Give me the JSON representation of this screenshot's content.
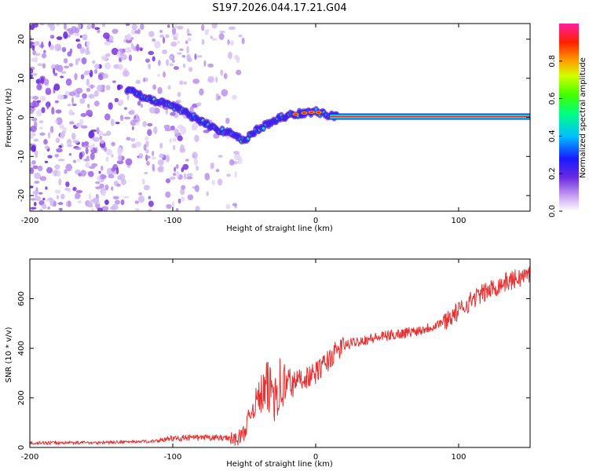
{
  "title": "S197.2026.044.17.21.G04",
  "chart_data": [
    {
      "type": "heatmap",
      "xlabel": "Height of straight line (km)",
      "ylabel": "Frequency (Hz)",
      "xlim": [
        -200,
        150
      ],
      "ylim": [
        -24,
        24
      ],
      "xticks": [
        "-200",
        "-100",
        "0",
        "100"
      ],
      "yticks": [
        "-20",
        "-10",
        "0",
        "10",
        "20"
      ],
      "colorbar": {
        "label": "Normalized spectral amplitude",
        "range": [
          0,
          1
        ],
        "ticks": [
          "0.0",
          "0.2",
          "0.4",
          "0.6",
          "0.8"
        ]
      },
      "ridge": {
        "x": [
          -130,
          -120,
          -110,
          -100,
          -90,
          -80,
          -70,
          -60,
          -55,
          -50,
          -45,
          -40,
          -30,
          -20,
          -10,
          0,
          5,
          10,
          15,
          150
        ],
        "freq": [
          7,
          5,
          4,
          3,
          1,
          -1,
          -3,
          -4,
          -5,
          -6,
          -4,
          -3,
          -1,
          0.5,
          1,
          1.5,
          1,
          0.5,
          0.2,
          0.2
        ]
      }
    },
    {
      "type": "line",
      "xlabel": "Height of straight line (km)",
      "ylabel": "SNR (10 * v/v)",
      "xlim": [
        -200,
        150
      ],
      "ylim": [
        0,
        760
      ],
      "xticks": [
        "-200",
        "-100",
        "0",
        "100"
      ],
      "yticks": [
        "0",
        "200",
        "400",
        "600"
      ],
      "series": [
        {
          "name": "SNR",
          "color": "#e83030",
          "x": [
            -200,
            -150,
            -110,
            -90,
            -70,
            -55,
            -50,
            -45,
            -40,
            -35,
            -30,
            -25,
            -20,
            -15,
            -10,
            -5,
            0,
            5,
            10,
            15,
            20,
            30,
            40,
            50,
            60,
            70,
            80,
            90,
            100,
            110,
            120,
            130,
            140,
            150
          ],
          "y": [
            20,
            22,
            28,
            35,
            35,
            35,
            60,
            150,
            200,
            230,
            240,
            245,
            250,
            265,
            280,
            285,
            300,
            330,
            360,
            390,
            410,
            430,
            440,
            450,
            460,
            470,
            485,
            510,
            550,
            600,
            630,
            660,
            680,
            700
          ]
        }
      ]
    }
  ]
}
